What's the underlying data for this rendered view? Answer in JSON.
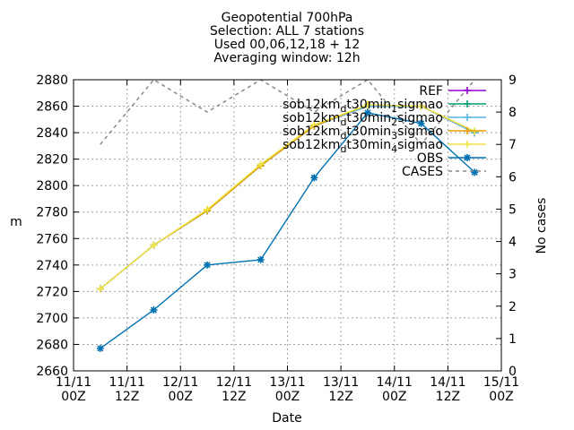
{
  "chart_data": {
    "type": "line",
    "title_lines": [
      "Geopotential 700hPa",
      "Selection: ALL       7 stations",
      "Used 00,06,12,18 + 12",
      "Averaging window: 12h"
    ],
    "xlabel": "Date",
    "ylabel": "m",
    "y2label": "No cases",
    "x_ticks": [
      {
        "x": 0,
        "line1": "11/11",
        "line2": "00Z"
      },
      {
        "x": 12,
        "line1": "11/11",
        "line2": "12Z"
      },
      {
        "x": 24,
        "line1": "12/11",
        "line2": "00Z"
      },
      {
        "x": 36,
        "line1": "12/11",
        "line2": "12Z"
      },
      {
        "x": 48,
        "line1": "13/11",
        "line2": "00Z"
      },
      {
        "x": 60,
        "line1": "13/11",
        "line2": "12Z"
      },
      {
        "x": 72,
        "line1": "14/11",
        "line2": "00Z"
      },
      {
        "x": 84,
        "line1": "14/11",
        "line2": "12Z"
      },
      {
        "x": 96,
        "line1": "15/11",
        "line2": "00Z"
      }
    ],
    "xlim": [
      0,
      96
    ],
    "ylim": [
      2660,
      2880
    ],
    "y_ticks": [
      2660,
      2680,
      2700,
      2720,
      2740,
      2760,
      2780,
      2800,
      2820,
      2840,
      2860,
      2880
    ],
    "y2lim": [
      0,
      9
    ],
    "y2_ticks": [
      0,
      1,
      2,
      3,
      4,
      5,
      6,
      7,
      8,
      9
    ],
    "grid": true,
    "legend_position": "top-right",
    "x": [
      6,
      18,
      30,
      42,
      54,
      66,
      78,
      90
    ],
    "series": [
      {
        "name": "REF",
        "color": "#9400d3",
        "marker": "plus",
        "axis": "y",
        "values": [
          2722,
          2755,
          2781,
          2815,
          2845,
          2860,
          2860,
          2840
        ]
      },
      {
        "name": "sob12km_d t30min_1 sigmao",
        "color": "#009e73",
        "marker": "plus",
        "axis": "y",
        "values": [
          2722,
          2755,
          2781,
          2815,
          2845,
          2860,
          2860,
          2840
        ]
      },
      {
        "name": "sob12km_d t30min_2 sigmao",
        "color": "#56b4e9",
        "marker": "plus",
        "axis": "y",
        "values": [
          2722,
          2755,
          2781,
          2815,
          2845,
          2860,
          2860,
          2840
        ]
      },
      {
        "name": "sob12km_d t30min_3 sigmao",
        "color": "#e69f00",
        "marker": "plus",
        "axis": "y",
        "values": [
          2722,
          2755,
          2781,
          2815,
          2845,
          2861,
          2860,
          2841
        ]
      },
      {
        "name": "sob12km_d t30min_4 sigmao",
        "color": "#f0e442",
        "marker": "plus",
        "axis": "y",
        "values": [
          2722,
          2755,
          2782,
          2816,
          2846,
          2861,
          2860,
          2841
        ]
      },
      {
        "name": "OBS",
        "color": "#0072b2",
        "marker": "star",
        "axis": "y",
        "values": [
          2677,
          2706,
          2740,
          2744,
          2806,
          2855,
          2847,
          2810
        ]
      },
      {
        "name": "CASES",
        "color": "#888888",
        "marker": "none",
        "dashed": true,
        "axis": "y2",
        "values": [
          7,
          9,
          8,
          9,
          8,
          9,
          7,
          9
        ]
      }
    ],
    "legend": [
      {
        "label": "REF",
        "base": "REF",
        "sub": "",
        "mid": "",
        "sub2": "",
        "tail": ""
      },
      {
        "label": "sob12km_d t30min_1 sigmao",
        "base": "sob12km",
        "sub": "d",
        "mid": "t30min",
        "sub2": "1",
        "tail": "sigmao"
      },
      {
        "label": "sob12km_d t30min_2 sigmao",
        "base": "sob12km",
        "sub": "d",
        "mid": "t30min",
        "sub2": "2",
        "tail": "sigmao"
      },
      {
        "label": "sob12km_d t30min_3 sigmao",
        "base": "sob12km",
        "sub": "d",
        "mid": "t30min",
        "sub2": "3",
        "tail": "sigmao"
      },
      {
        "label": "sob12km_d t30min_4 sigmao",
        "base": "sob12km",
        "sub": "d",
        "mid": "t30min",
        "sub2": "4",
        "tail": "sigmao"
      },
      {
        "label": "OBS",
        "base": "OBS",
        "sub": "",
        "mid": "",
        "sub2": "",
        "tail": ""
      },
      {
        "label": "CASES",
        "base": "CASES",
        "sub": "",
        "mid": "",
        "sub2": "",
        "tail": ""
      }
    ]
  }
}
